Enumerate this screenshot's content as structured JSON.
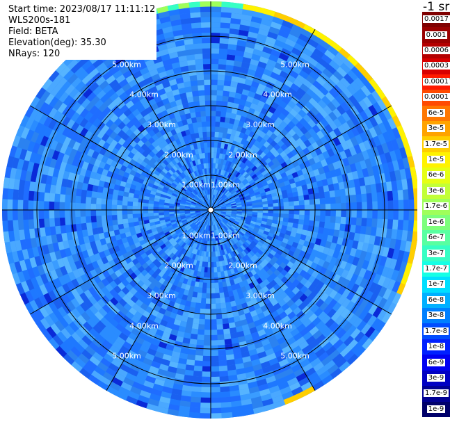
{
  "header": {
    "start_time": "Start time: 2023/08/17 11:11:12",
    "instrument": "WLS200s-181",
    "field": "Field: BETA",
    "elevation": "Elevation(deg): 35.30",
    "nrays": "NRays: 120"
  },
  "colorbar": {
    "unit_label": "-1 sr",
    "labels": [
      "0.0017",
      "0.001",
      "0.0006",
      "0.0003",
      "0.00017",
      "0.0001",
      "6e-5",
      "3e-5",
      "1.7e-5",
      "1e-5",
      "6e-6",
      "3e-6",
      "1.7e-6",
      "1e-6",
      "6e-7",
      "3e-7",
      "1.7e-7",
      "1e-7",
      "6e-8",
      "3e-8",
      "1.7e-8",
      "1e-8",
      "6e-9",
      "3e-9",
      "1.7e-9",
      "1e-9"
    ],
    "colors": [
      "#7f0000",
      "#9a0000",
      "#b40000",
      "#d80000",
      "#ff1a00",
      "#ff4a00",
      "#ff7700",
      "#ffa300",
      "#ffce00",
      "#fff200",
      "#e6ff14",
      "#c2ff38",
      "#9fff5a",
      "#7dff7b",
      "#58ffa1",
      "#36ffc4",
      "#15ffe5",
      "#00dfff",
      "#00b0ff",
      "#0080ff",
      "#004cff",
      "#0020ff",
      "#0000f1",
      "#0000c3",
      "#000093",
      "#00006a"
    ]
  },
  "chart_data": {
    "type": "heatmap",
    "projection": "polar (PPI)",
    "field": "BETA",
    "nrays": 120,
    "elevation_deg": 35.3,
    "range_rings_km": [
      1.0,
      2.0,
      3.0,
      4.0,
      5.0
    ],
    "range_labels": [
      "1.00km",
      "2.00km",
      "3.00km",
      "4.00km",
      "5.00km"
    ],
    "max_range_km": 6.0,
    "radial_lines_deg": [
      0,
      30,
      60,
      90,
      120,
      150,
      180,
      210,
      240,
      270,
      300,
      330
    ],
    "dominant_value_range": [
      "1e-8",
      "3e-8"
    ],
    "edge_values_range": [
      "3e-6",
      "0.0003"
    ],
    "colorscale": "jet, logarithmic"
  }
}
